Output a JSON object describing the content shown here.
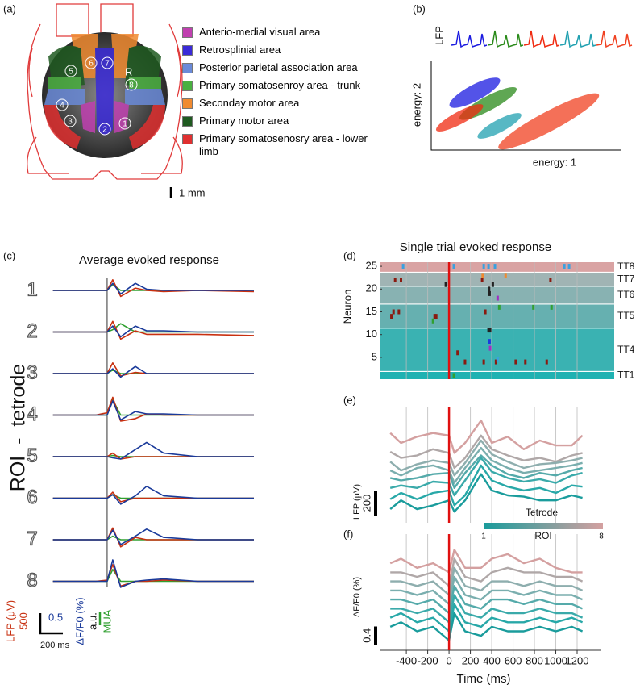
{
  "panel_a": {
    "label": "(a)",
    "hemisphere": "R",
    "scale_bar": "1 mm",
    "legend": [
      {
        "name": "Anterio-medial visual area",
        "color": "#c040b0"
      },
      {
        "name": "Retrosplinial area",
        "color": "#3a2ad8"
      },
      {
        "name": "Posterior parietal association area",
        "color": "#6a8ad8"
      },
      {
        "name": "Primary somatosenroy area - trunk",
        "color": "#4ab040"
      },
      {
        "name": "Seconday motor area",
        "color": "#f08a30"
      },
      {
        "name": "Primary motor area",
        "color": "#1f5a20"
      },
      {
        "name": "Primary somatosenosry area - lower limb",
        "color": "#e03030"
      }
    ],
    "roi_labels": [
      "1",
      "2",
      "3",
      "4",
      "5",
      "6",
      "7",
      "8"
    ]
  },
  "panel_b": {
    "type": "scatter",
    "label": "(b)",
    "waveform_label": "LFP",
    "xlabel": "energy: 1",
    "ylabel": "energy: 2",
    "xlim": [
      0,
      10
    ],
    "ylim": [
      0,
      10
    ],
    "clusters": [
      {
        "color": "#1a1ae0",
        "x": 2.3,
        "y": 6.4,
        "spread": [
          1.5,
          0.9
        ]
      },
      {
        "color": "#2a8a1a",
        "x": 3.0,
        "y": 5.2,
        "spread": [
          1.7,
          0.8
        ]
      },
      {
        "color": "#f02a10",
        "x": 1.5,
        "y": 3.6,
        "spread": [
          1.4,
          0.7
        ]
      },
      {
        "color": "#20a0b0",
        "x": 3.6,
        "y": 2.7,
        "spread": [
          1.3,
          0.7
        ]
      },
      {
        "color": "#f04020",
        "x": 6.2,
        "y": 3.2,
        "spread": [
          3.0,
          1.1
        ]
      }
    ]
  },
  "panel_c": {
    "type": "line",
    "label": "(c)",
    "title": "Average evoked response",
    "ylabel": "ROI  -  tetrode",
    "xlim": [
      -485,
      1300
    ],
    "ylim": [
      -1.7,
      1.7
    ],
    "x": [
      -480,
      -100,
      0,
      50,
      120,
      250,
      350,
      500,
      800,
      1300
    ],
    "colors": {
      "lfp": "#c83010",
      "dff": "#1a3a9a",
      "mua": "#30a030"
    },
    "rows": [
      {
        "label": "1",
        "lfp": [
          0,
          0,
          0,
          0.9,
          -0.5,
          0.2,
          0,
          -0.1,
          0,
          -0.1
        ],
        "dff": [
          0,
          0,
          0,
          0.6,
          -0.3,
          0.6,
          0.1,
          0,
          0,
          0
        ],
        "mua": [
          0,
          0,
          0,
          0.5,
          0,
          0,
          0,
          0,
          0,
          0
        ]
      },
      {
        "label": "2",
        "lfp": [
          0,
          0,
          0,
          0.9,
          -0.6,
          0.1,
          -0.2,
          -0.2,
          -0.2,
          -0.3
        ],
        "dff": [
          0,
          0,
          0,
          0.5,
          -0.4,
          0.5,
          0.1,
          0.1,
          0,
          0
        ],
        "mua": [
          0,
          0,
          0,
          0.2,
          0.7,
          0,
          0,
          0,
          0,
          0
        ]
      },
      {
        "label": "3",
        "lfp": [
          0,
          0,
          0,
          0.9,
          -0.2,
          0.1,
          0,
          0,
          0,
          0
        ],
        "dff": [
          0,
          0,
          0,
          0.4,
          -0.3,
          0.6,
          0,
          0,
          0,
          0
        ],
        "mua": [
          0,
          0,
          0,
          0.3,
          0,
          0,
          0,
          0,
          0,
          0
        ]
      },
      {
        "label": "4",
        "lfp": [
          0,
          0,
          0.2,
          1.5,
          -0.5,
          -0.3,
          0.1,
          0,
          0,
          0
        ],
        "dff": [
          0,
          0,
          0,
          1.2,
          -0.4,
          0.3,
          0.1,
          0.1,
          0,
          0
        ],
        "mua": [
          0,
          0,
          0,
          1.3,
          0,
          0,
          0,
          0,
          0,
          0
        ]
      },
      {
        "label": "5",
        "lfp": [
          0,
          0,
          0,
          0.3,
          -0.2,
          0,
          0,
          0,
          0,
          0
        ],
        "dff": [
          0,
          0,
          0,
          -0.1,
          -0.2,
          0.6,
          1.2,
          0.3,
          0,
          0
        ],
        "mua": [
          0,
          0,
          0,
          0.1,
          0,
          0,
          0,
          0,
          0,
          0
        ]
      },
      {
        "label": "6",
        "lfp": [
          0,
          0,
          0,
          0.5,
          -0.3,
          0,
          0,
          0,
          0,
          0
        ],
        "dff": [
          0,
          0,
          0,
          0.3,
          -0.5,
          0.2,
          1,
          0.2,
          0,
          0
        ],
        "mua": [
          0,
          0,
          0,
          0.3,
          0,
          0,
          0,
          0,
          0,
          0
        ]
      },
      {
        "label": "7",
        "lfp": [
          0,
          0,
          0,
          1,
          -0.6,
          0.2,
          0,
          0,
          0,
          0
        ],
        "dff": [
          0,
          0,
          0,
          0.8,
          -0.4,
          0.3,
          0.9,
          0.2,
          0,
          0
        ],
        "mua": [
          0,
          0,
          0,
          0.3,
          0,
          0,
          0,
          0,
          0,
          0
        ]
      },
      {
        "label": "8",
        "lfp": [
          0,
          0,
          0.1,
          1.4,
          -0.4,
          0,
          0,
          0.1,
          0,
          0
        ],
        "dff": [
          0,
          0,
          0,
          1.8,
          -0.5,
          0,
          0.1,
          0.2,
          0,
          0
        ],
        "mua": [
          0,
          0,
          0,
          1,
          0,
          0,
          0,
          0,
          0,
          0
        ]
      }
    ],
    "scale": {
      "lfp_label": "LFP (μV)",
      "lfp_value": 500,
      "dff_label": "ΔF/F0 (%)",
      "dff_value": 0.5,
      "au_label": "a.u.",
      "mua_label": "MUA",
      "time_label": "200 ms",
      "time_value": 200
    }
  },
  "panel_d": {
    "type": "raster",
    "label": "(d)",
    "title": "Single trial evoked response",
    "ylabel": "Neuron",
    "xlim": [
      -650,
      1400
    ],
    "ylim": [
      0.2,
      25.9
    ],
    "yticks": [
      5,
      10,
      15,
      20,
      25
    ],
    "tetrodes": [
      {
        "name": "TT8",
        "range": [
          23.8,
          25.9
        ],
        "color": "#d9a3a3"
      },
      {
        "name": "TT7",
        "range": [
          20.7,
          23.6
        ],
        "color": "#a0b4b4"
      },
      {
        "name": "TT6",
        "range": [
          16.8,
          20.5
        ],
        "color": "#88b2b2"
      },
      {
        "name": "TT5",
        "range": [
          11.5,
          16.6
        ],
        "color": "#66b0b0"
      },
      {
        "name": "TT4",
        "range": [
          2,
          11.3
        ],
        "color": "#3ab2b2"
      },
      {
        "name": "TT1",
        "range": [
          0.2,
          1.8
        ],
        "color": "#20b2b2"
      }
    ],
    "spikes": {
      "x": [
        -430,
        45,
        325,
        370,
        430,
        1080,
        1125,
        -505,
        -450,
        310,
        410,
        950,
        315,
        530,
        -30,
        375,
        380,
        455,
        470,
        790,
        960,
        -520,
        -470,
        -540,
        340,
        -135,
        -120,
        -150,
        370,
        385,
        380,
        385,
        80,
        325,
        150,
        440,
        625,
        715,
        915,
        455,
        45
      ],
      "neuron": [
        25,
        25,
        25,
        25,
        25,
        25,
        25,
        22,
        22,
        22,
        21,
        22,
        23,
        23,
        21,
        20,
        19,
        18,
        16,
        16,
        16,
        15,
        15,
        14,
        15,
        14,
        14,
        13,
        11,
        11,
        8.5,
        7,
        6,
        4,
        4,
        4,
        4,
        4,
        4,
        4.5,
        1
      ],
      "color": [
        "#3aa0e0",
        "#3aa0e0",
        "#3aa0e0",
        "#3aa0e0",
        "#3aa0e0",
        "#3aa0e0",
        "#3aa0e0",
        "#8a1a10",
        "#8a1a10",
        "#8a1a10",
        "#222222",
        "#8a1a10",
        "#f08a30",
        "#f08a30",
        "#222222",
        "#222222",
        "#222222",
        "#a030c0",
        "#30a030",
        "#30a030",
        "#30a030",
        "#8a1a10",
        "#8a1a10",
        "#8a1a10",
        "#8a1a10",
        "#8a1a10",
        "#8a1a10",
        "#30a030",
        "#222222",
        "#222222",
        "#1a3ae0",
        "#a030c0",
        "#8a1a10",
        "#8a1a10",
        "#8a1a10",
        "#8a1a10",
        "#8a1a10",
        "#8a1a10",
        "#8a1a10",
        "#3aa0e0",
        "#30a030"
      ]
    }
  },
  "panel_e": {
    "type": "line",
    "label": "(e)",
    "ylabel": "LFP (μV)",
    "scale_value": 200,
    "legend_title": "Tetrode",
    "colorbar": {
      "low": "1",
      "title": "ROI",
      "high": "8"
    },
    "xlim": [
      -650,
      1400
    ],
    "ylim": [
      -420,
      420
    ],
    "x": [
      -550,
      -450,
      -300,
      -150,
      0,
      50,
      150,
      300,
      400,
      550,
      700,
      850,
      1000,
      1150,
      1250
    ],
    "series": [
      {
        "color": "#d4a0a0",
        "values": [
          280,
          200,
          250,
          280,
          260,
          120,
          200,
          380,
          200,
          250,
          150,
          220,
          180,
          180,
          260
        ]
      },
      {
        "color": "#b0a8a8",
        "values": [
          130,
          80,
          100,
          150,
          120,
          0,
          80,
          260,
          150,
          100,
          60,
          80,
          50,
          100,
          120
        ]
      },
      {
        "color": "#8eaeae",
        "values": [
          50,
          -20,
          30,
          60,
          40,
          -60,
          40,
          220,
          110,
          50,
          0,
          30,
          40,
          60,
          80
        ]
      },
      {
        "color": "#7aaeae",
        "values": [
          -20,
          -60,
          0,
          20,
          -20,
          -120,
          0,
          160,
          60,
          0,
          -40,
          -20,
          0,
          20,
          40
        ]
      },
      {
        "color": "#55aaaa",
        "values": [
          -80,
          -100,
          -80,
          -50,
          -40,
          -160,
          -40,
          100,
          20,
          -50,
          -80,
          -40,
          -60,
          -20,
          0
        ]
      },
      {
        "color": "#3aaaaa",
        "values": [
          -160,
          -140,
          -160,
          -110,
          -120,
          -220,
          -100,
          80,
          -30,
          -80,
          -110,
          -90,
          -120,
          -60,
          -40
        ]
      },
      {
        "color": "#28a8a8",
        "values": [
          -250,
          -200,
          -250,
          -200,
          -180,
          -300,
          -220,
          20,
          -100,
          -150,
          -180,
          -160,
          -200,
          -140,
          -150
        ]
      },
      {
        "color": "#1a9c9c",
        "values": [
          -330,
          -260,
          -330,
          -300,
          -260,
          -350,
          -260,
          -50,
          -180,
          -220,
          -230,
          -260,
          -260,
          -220,
          -240
        ]
      }
    ]
  },
  "panel_f": {
    "type": "line",
    "label": "(f)",
    "ylabel": "ΔF/F0 (%)",
    "scale_value": 0.4,
    "xlabel": "Time (ms)",
    "xlim": [
      -650,
      1400
    ],
    "ylim": [
      -1.3,
      1.1
    ],
    "xticks": [
      -400,
      -200,
      0,
      200,
      400,
      600,
      800,
      1000,
      1200
    ],
    "x": [
      -550,
      -450,
      -300,
      -150,
      0,
      50,
      150,
      300,
      400,
      550,
      700,
      850,
      1000,
      1150,
      1250
    ],
    "series": [
      {
        "color": "#d4a0a0",
        "values": [
          0.6,
          0.7,
          0.5,
          0.6,
          0.4,
          0.9,
          0.5,
          0.5,
          0.7,
          0.8,
          0.6,
          0.7,
          0.5,
          0.4,
          0.4
        ]
      },
      {
        "color": "#b0a8a8",
        "values": [
          0.4,
          0.4,
          0.3,
          0.4,
          0.1,
          0.7,
          0.3,
          0.2,
          0.4,
          0.5,
          0.4,
          0.4,
          0.3,
          0.3,
          0.2
        ]
      },
      {
        "color": "#8eaeae",
        "values": [
          0.2,
          0.2,
          0.1,
          0.2,
          -0.1,
          0.5,
          0.1,
          0,
          0.2,
          0.2,
          0.1,
          0.2,
          0.1,
          0.1,
          0
        ]
      },
      {
        "color": "#7aaeae",
        "values": [
          0,
          0,
          -0.1,
          0,
          -0.3,
          0.3,
          -0.1,
          -0.2,
          0,
          0,
          -0.1,
          0,
          -0.1,
          -0.1,
          -0.2
        ]
      },
      {
        "color": "#55aaaa",
        "values": [
          -0.2,
          -0.2,
          -0.3,
          -0.2,
          -0.5,
          0.1,
          -0.3,
          -0.4,
          -0.2,
          -0.2,
          -0.3,
          -0.2,
          -0.3,
          -0.3,
          -0.4
        ]
      },
      {
        "color": "#3aaaaa",
        "values": [
          -0.4,
          -0.4,
          -0.5,
          -0.4,
          -0.7,
          -0.1,
          -0.5,
          -0.6,
          -0.4,
          -0.5,
          -0.5,
          -0.4,
          -0.5,
          -0.5,
          -0.6
        ]
      },
      {
        "color": "#28a8a8",
        "values": [
          -0.6,
          -0.5,
          -0.7,
          -0.6,
          -0.9,
          -0.3,
          -0.7,
          -0.8,
          -0.6,
          -0.7,
          -0.7,
          -0.6,
          -0.7,
          -0.6,
          -0.7
        ]
      },
      {
        "color": "#1a9c9c",
        "values": [
          -0.8,
          -0.7,
          -0.9,
          -0.8,
          -1.1,
          -0.5,
          -0.9,
          -1.0,
          -0.8,
          -0.9,
          -0.9,
          -0.8,
          -0.9,
          -0.8,
          -0.9
        ]
      }
    ]
  }
}
